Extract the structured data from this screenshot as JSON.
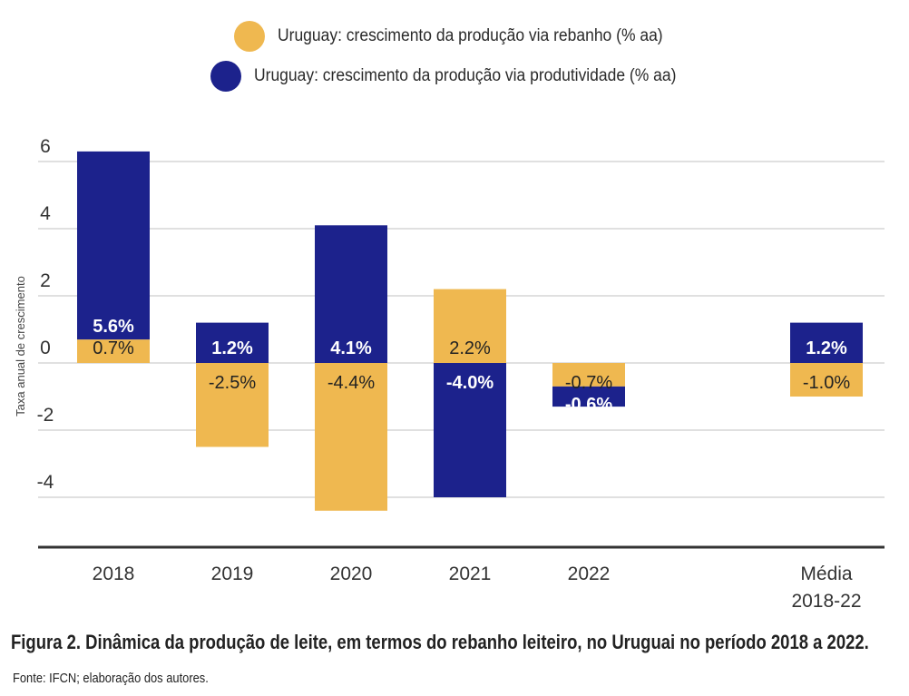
{
  "colors": {
    "rebanho": "#efb850",
    "produtividade": "#1c228c",
    "grid": "#d6d6d6",
    "axis": "#333333"
  },
  "legend": {
    "rebanho_label": "Uruguay: crescimento da produção via rebanho (% aa)",
    "produtividade_label": "Uruguay: crescimento da produção via produtividade (% aa)"
  },
  "chart_data": {
    "type": "bar",
    "stacked": true,
    "categories": [
      [
        "2018"
      ],
      [
        "2019"
      ],
      [
        "2020"
      ],
      [
        "2021"
      ],
      [
        "2022"
      ],
      [
        "Média",
        "2018-22"
      ]
    ],
    "category_slots": [
      0,
      1,
      2,
      3,
      4,
      6
    ],
    "series": [
      {
        "name": "Uruguay: crescimento da produção via rebanho (% aa)",
        "key": "rebanho",
        "values": [
          0.7,
          -2.5,
          -4.4,
          2.2,
          -0.7,
          -1.0
        ],
        "labels": [
          "0.7%",
          "-2.5%",
          "-4.4%",
          "2.2%",
          "-0.7%",
          "-1.0%"
        ]
      },
      {
        "name": "Uruguay: crescimento da produção via produtividade (% aa)",
        "key": "produtividade",
        "values": [
          5.6,
          1.2,
          4.1,
          -4.0,
          -0.6,
          1.2
        ],
        "labels": [
          "5.6%",
          "1.2%",
          "4.1%",
          "-4.0%",
          "-0.6%",
          "1.2%"
        ]
      }
    ],
    "ylabel": "Taxa anual de crescimento",
    "ylim": [
      -5.3,
      6.5
    ],
    "yticks": [
      -4,
      -2,
      0,
      2,
      4,
      6
    ],
    "ytick_labels": [
      "-4",
      "-2",
      "0",
      "2",
      "4",
      "6"
    ],
    "grid": true
  },
  "caption": "Figura 2. Dinâmica da produção de leite, em termos do rebanho leiteiro, no Uruguai no período 2018 a 2022.",
  "source": "Fonte: IFCN; elaboração dos autores."
}
